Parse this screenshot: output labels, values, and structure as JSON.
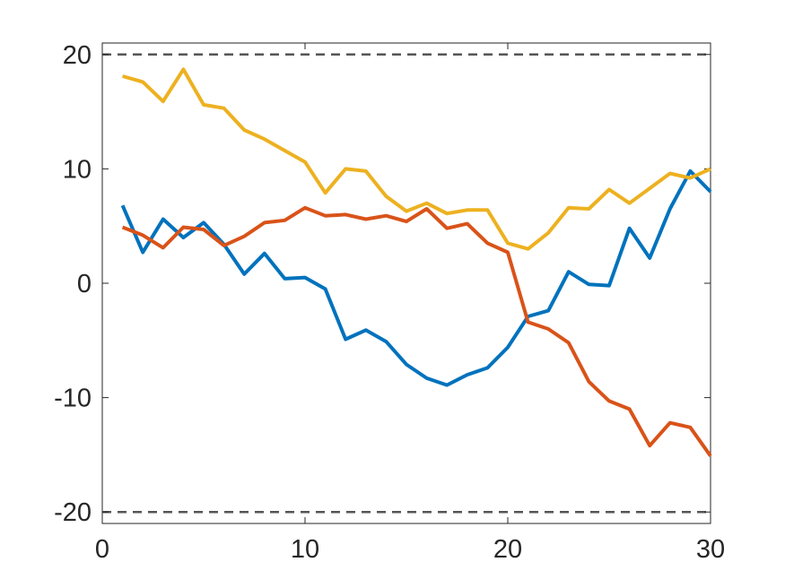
{
  "chart_data": {
    "type": "line",
    "title": "",
    "xlabel": "",
    "ylabel": "",
    "xlim": [
      0,
      30
    ],
    "ylim": [
      -21,
      21
    ],
    "x_ticks": [
      0,
      10,
      20,
      30
    ],
    "x_tick_labels": [
      "0",
      "10",
      "20",
      "30"
    ],
    "y_ticks": [
      -20,
      -10,
      0,
      10,
      20
    ],
    "y_tick_labels": [
      "-20",
      "-10",
      "0",
      "10",
      "20"
    ],
    "grid": false,
    "box": true,
    "x": [
      1,
      2,
      3,
      4,
      5,
      6,
      7,
      8,
      9,
      10,
      11,
      12,
      13,
      14,
      15,
      16,
      17,
      18,
      19,
      20,
      21,
      22,
      23,
      24,
      25,
      26,
      27,
      28,
      29,
      30
    ],
    "series": [
      {
        "color": "#0072BD",
        "values": [
          6.8,
          2.7,
          5.6,
          4.0,
          5.3,
          3.4,
          0.8,
          2.6,
          0.4,
          0.5,
          -0.5,
          -4.9,
          -4.1,
          -5.1,
          -7.1,
          -8.3,
          -8.9,
          -8.0,
          -7.4,
          -5.6,
          -2.9,
          -2.4,
          1.0,
          -0.1,
          -0.2,
          4.8,
          2.2,
          6.5,
          9.8,
          8.0
        ]
      },
      {
        "color": "#D95319",
        "values": [
          4.9,
          4.2,
          3.1,
          4.9,
          4.7,
          3.3,
          4.1,
          5.3,
          5.5,
          6.6,
          5.9,
          6.0,
          5.6,
          5.9,
          5.4,
          6.5,
          4.8,
          5.2,
          3.5,
          2.7,
          -3.4,
          -4.0,
          -5.2,
          -8.6,
          -10.3,
          -11.0,
          -14.2,
          -12.2,
          -12.6,
          -15.1
        ]
      },
      {
        "color": "#EDB120",
        "values": [
          18.1,
          17.6,
          15.9,
          18.7,
          15.6,
          15.3,
          13.4,
          12.6,
          11.6,
          10.6,
          7.9,
          10.0,
          9.8,
          7.6,
          6.3,
          7.0,
          6.1,
          6.4,
          6.4,
          3.5,
          3.0,
          4.4,
          6.6,
          6.5,
          8.2,
          7.0,
          8.3,
          9.6,
          9.2,
          10.0
        ]
      }
    ],
    "reference_lines": [
      {
        "y": 20,
        "style": "dashed",
        "color": "#555555"
      },
      {
        "y": -20,
        "style": "dashed",
        "color": "#555555"
      }
    ]
  }
}
